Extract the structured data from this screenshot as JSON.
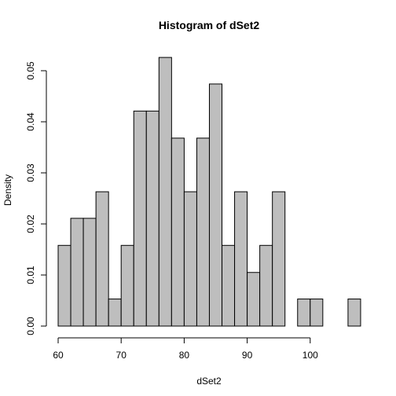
{
  "chart_data": {
    "type": "bar",
    "title": "Histogram of dSet2",
    "xlabel": "dSet2",
    "ylabel": "Density",
    "bin_width": 2,
    "bins": [
      {
        "x0": 60,
        "x1": 62,
        "density": 0.0158
      },
      {
        "x0": 62,
        "x1": 64,
        "density": 0.0211
      },
      {
        "x0": 64,
        "x1": 66,
        "density": 0.0211
      },
      {
        "x0": 66,
        "x1": 68,
        "density": 0.0263
      },
      {
        "x0": 68,
        "x1": 70,
        "density": 0.0053
      },
      {
        "x0": 70,
        "x1": 72,
        "density": 0.0158
      },
      {
        "x0": 72,
        "x1": 74,
        "density": 0.0421
      },
      {
        "x0": 74,
        "x1": 76,
        "density": 0.0421
      },
      {
        "x0": 76,
        "x1": 78,
        "density": 0.0526
      },
      {
        "x0": 78,
        "x1": 80,
        "density": 0.0368
      },
      {
        "x0": 80,
        "x1": 82,
        "density": 0.0263
      },
      {
        "x0": 82,
        "x1": 84,
        "density": 0.0368
      },
      {
        "x0": 84,
        "x1": 86,
        "density": 0.0474
      },
      {
        "x0": 86,
        "x1": 88,
        "density": 0.0158
      },
      {
        "x0": 88,
        "x1": 90,
        "density": 0.0263
      },
      {
        "x0": 90,
        "x1": 92,
        "density": 0.0105
      },
      {
        "x0": 92,
        "x1": 94,
        "density": 0.0158
      },
      {
        "x0": 94,
        "x1": 96,
        "density": 0.0263
      },
      {
        "x0": 96,
        "x1": 98,
        "density": 0
      },
      {
        "x0": 98,
        "x1": 100,
        "density": 0.0053
      },
      {
        "x0": 100,
        "x1": 102,
        "density": 0.0053
      },
      {
        "x0": 102,
        "x1": 104,
        "density": 0
      },
      {
        "x0": 104,
        "x1": 106,
        "density": 0
      },
      {
        "x0": 106,
        "x1": 108,
        "density": 0.0053
      }
    ],
    "xlim": [
      60,
      108
    ],
    "ylim": [
      0,
      0.055
    ],
    "xticks": [
      60,
      70,
      80,
      90,
      100
    ],
    "yticks": [
      0.0,
      0.01,
      0.02,
      0.03,
      0.04,
      0.05
    ],
    "xtick_labels": [
      "60",
      "70",
      "80",
      "90",
      "100"
    ],
    "ytick_labels": [
      "0.00",
      "0.01",
      "0.02",
      "0.03",
      "0.04",
      "0.05"
    ],
    "grid": false,
    "bar_fill": "#bebebe",
    "bar_stroke": "#000000"
  }
}
